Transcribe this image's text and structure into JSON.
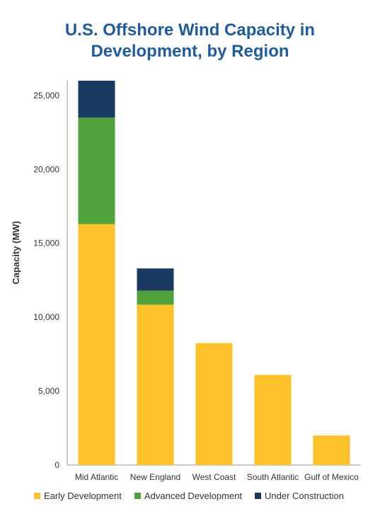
{
  "chart_data": {
    "type": "bar",
    "stacked": true,
    "title": "U.S. Offshore Wind Capacity in Development, by Region",
    "title_lines": [
      "U.S. Offshore Wind Capacity in",
      "Development, by Region"
    ],
    "xlabel": "",
    "ylabel": "Capacity (MW)",
    "ylim": [
      0,
      26000
    ],
    "yticks": [
      0,
      5000,
      10000,
      15000,
      20000,
      25000
    ],
    "ytick_labels": [
      "0",
      "5,000",
      "10,000",
      "15,000",
      "20,000",
      "25,000"
    ],
    "categories": [
      "Mid Atlantic",
      "New England",
      "West Coast",
      "South Atlantic",
      "Gulf of Mexico"
    ],
    "series": [
      {
        "name": "Early Development",
        "color": "#fdc12a",
        "values": [
          16300,
          10850,
          8250,
          6100,
          2000
        ]
      },
      {
        "name": "Advanced Development",
        "color": "#4fa33a",
        "values": [
          7200,
          950,
          0,
          0,
          0
        ]
      },
      {
        "name": "Under Construction",
        "color": "#1b3a63",
        "values": [
          2500,
          1500,
          0,
          0,
          0
        ]
      }
    ],
    "grid": false,
    "legend_position": "bottom"
  }
}
